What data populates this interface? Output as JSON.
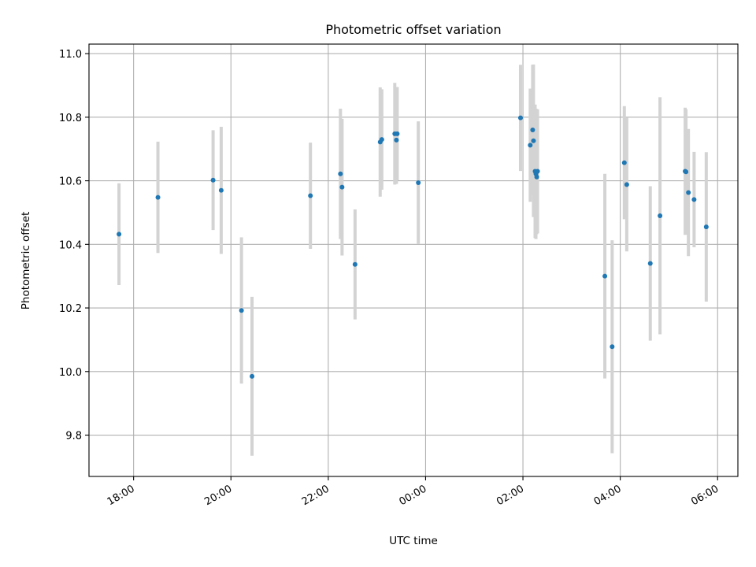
{
  "chart_data": {
    "type": "scatter",
    "title": "Photometric offset variation",
    "xlabel": "UTC time",
    "ylabel": "Photometric offset",
    "x_tick_labels": [
      "18:00",
      "20:00",
      "22:00",
      "00:00",
      "02:00",
      "04:00",
      "06:00"
    ],
    "y_tick_labels": [
      "9.8",
      "10.0",
      "10.2",
      "10.4",
      "10.6",
      "10.8",
      "11.0"
    ],
    "y_ticks": [
      9.8,
      10.0,
      10.2,
      10.4,
      10.6,
      10.8,
      11.0
    ],
    "xlim": [
      "17:05",
      "06:25"
    ],
    "ylim": [
      9.67,
      11.03
    ],
    "grid": true,
    "marker_color": "#1f77b4",
    "errorbar_color": "#d3d3d3",
    "points": [
      {
        "x": "17:42",
        "y": 10.432,
        "err": 0.16
      },
      {
        "x": "18:30",
        "y": 10.548,
        "err": 0.175
      },
      {
        "x": "19:38",
        "y": 10.602,
        "err": 0.157
      },
      {
        "x": "19:48",
        "y": 10.57,
        "err": 0.2
      },
      {
        "x": "20:13",
        "y": 10.192,
        "err": 0.23
      },
      {
        "x": "20:26",
        "y": 9.985,
        "err": 0.25
      },
      {
        "x": "21:38",
        "y": 10.553,
        "err": 0.167
      },
      {
        "x": "22:15",
        "y": 10.622,
        "err": 0.205
      },
      {
        "x": "22:17",
        "y": 10.58,
        "err": 0.215
      },
      {
        "x": "22:33",
        "y": 10.337,
        "err": 0.173
      },
      {
        "x": "23:04",
        "y": 10.722,
        "err": 0.172
      },
      {
        "x": "23:06",
        "y": 10.73,
        "err": 0.158
      },
      {
        "x": "23:22",
        "y": 10.748,
        "err": 0.16
      },
      {
        "x": "23:24",
        "y": 10.728,
        "err": 0.138
      },
      {
        "x": "23:25",
        "y": 10.748,
        "err": 0.147
      },
      {
        "x": "23:51",
        "y": 10.594,
        "err": 0.193
      },
      {
        "x": "01:57",
        "y": 10.798,
        "err": 0.167
      },
      {
        "x": "02:09",
        "y": 10.712,
        "err": 0.178
      },
      {
        "x": "02:12",
        "y": 10.76,
        "err": 0.205
      },
      {
        "x": "02:13",
        "y": 10.726,
        "err": 0.24
      },
      {
        "x": "02:15",
        "y": 10.63,
        "err": 0.21
      },
      {
        "x": "02:16",
        "y": 10.622,
        "err": 0.205
      },
      {
        "x": "02:17",
        "y": 10.612,
        "err": 0.18
      },
      {
        "x": "02:18",
        "y": 10.63,
        "err": 0.195
      },
      {
        "x": "03:41",
        "y": 10.3,
        "err": 0.322
      },
      {
        "x": "03:50",
        "y": 10.078,
        "err": 0.335
      },
      {
        "x": "04:05",
        "y": 10.657,
        "err": 0.178
      },
      {
        "x": "04:08",
        "y": 10.588,
        "err": 0.21
      },
      {
        "x": "04:37",
        "y": 10.34,
        "err": 0.243
      },
      {
        "x": "04:49",
        "y": 10.49,
        "err": 0.373
      },
      {
        "x": "05:20",
        "y": 10.63,
        "err": 0.2
      },
      {
        "x": "05:21",
        "y": 10.628,
        "err": 0.197
      },
      {
        "x": "05:24",
        "y": 10.563,
        "err": 0.2
      },
      {
        "x": "05:31",
        "y": 10.541,
        "err": 0.15
      },
      {
        "x": "05:46",
        "y": 10.455,
        "err": 0.235
      }
    ]
  }
}
